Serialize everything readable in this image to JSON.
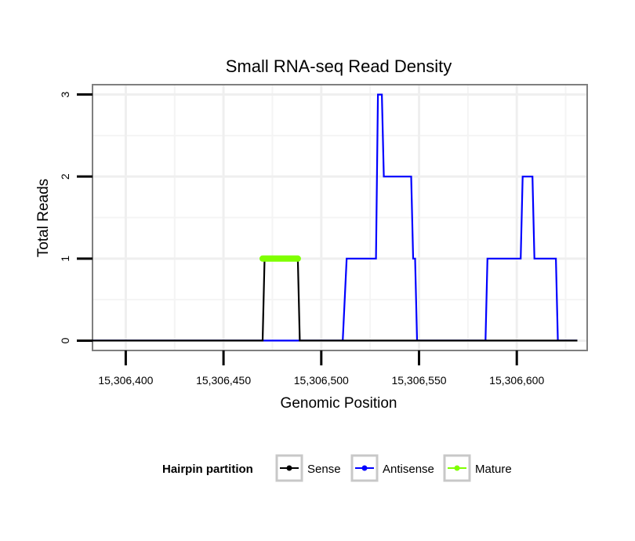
{
  "chart_data": {
    "type": "line",
    "title": "Small RNA-seq Read Density",
    "xlabel": "Genomic Position",
    "ylabel": "Total Reads",
    "xlim": [
      15306383,
      15306636
    ],
    "ylim": [
      -0.12,
      3.12
    ],
    "x_ticks": [
      15306400,
      15306450,
      15306500,
      15306550,
      15306600
    ],
    "x_tick_labels": [
      "15,306,400",
      "15,306,450",
      "15,306,500",
      "15,306,550",
      "15,306,600"
    ],
    "y_ticks": [
      0,
      1,
      2,
      3
    ],
    "y_tick_labels": [
      "0",
      "1",
      "2",
      "3"
    ],
    "grid": true,
    "legend": {
      "title": "Hairpin partition",
      "position": "bottom",
      "entries": [
        {
          "name": "Sense",
          "color": "#000000"
        },
        {
          "name": "Antisense",
          "color": "#0000ff"
        },
        {
          "name": "Mature",
          "color": "#7fff00"
        }
      ]
    },
    "series": [
      {
        "name": "Antisense",
        "color": "#0000ff",
        "x": [
          15306383,
          15306511,
          15306513,
          15306528,
          15306529,
          15306531,
          15306532,
          15306546,
          15306547,
          15306548,
          15306549,
          15306584,
          15306585,
          15306602,
          15306603,
          15306608,
          15306609,
          15306620,
          15306621,
          15306631
        ],
        "y": [
          0,
          0,
          1,
          1,
          3,
          3,
          2,
          2,
          1,
          1,
          0,
          0,
          1,
          1,
          2,
          2,
          1,
          1,
          0,
          0
        ]
      },
      {
        "name": "Sense",
        "color": "#000000",
        "x": [
          15306383,
          15306470,
          15306471,
          15306488,
          15306489,
          15306631
        ],
        "y": [
          0,
          0,
          1,
          1,
          0,
          0
        ]
      },
      {
        "name": "Mature",
        "color": "#7fff00",
        "x": [
          15306470,
          15306488
        ],
        "y": [
          1,
          1
        ]
      }
    ]
  }
}
